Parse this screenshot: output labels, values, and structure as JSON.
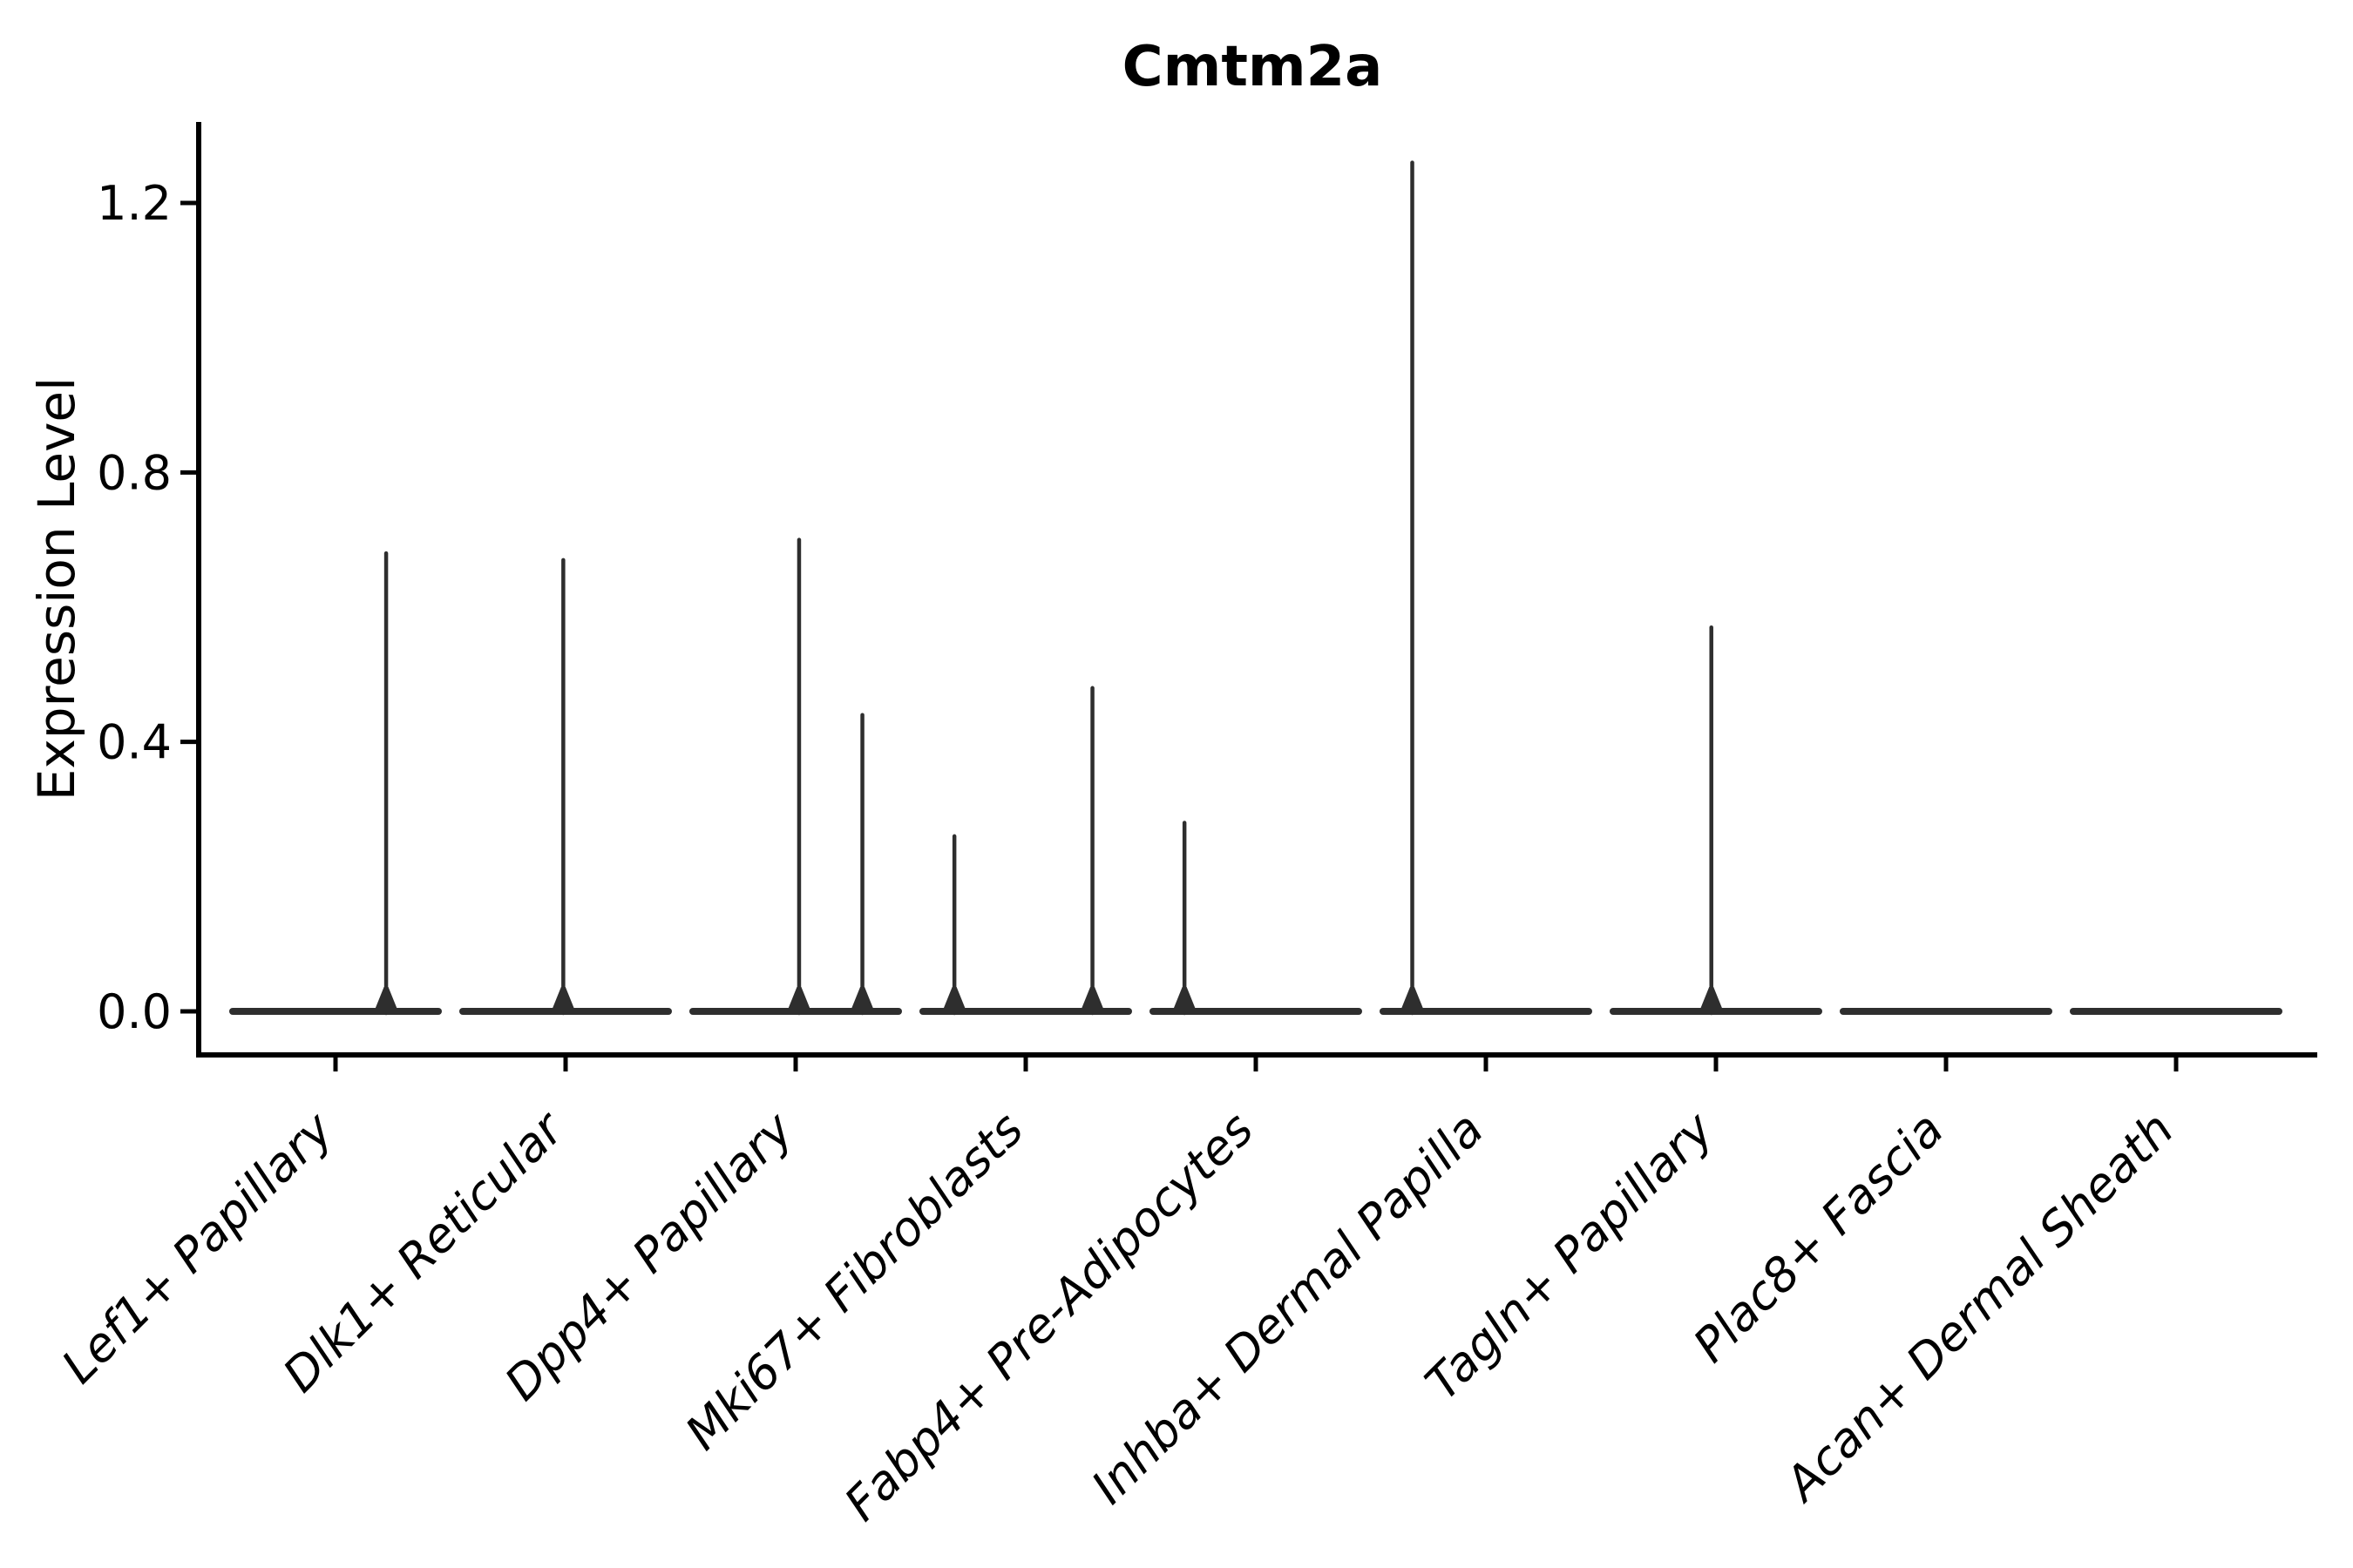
{
  "figure": {
    "background": "#ffffff",
    "axis_color": "#000000",
    "text_color": "#000000",
    "violin_color": "#2e2e2e"
  },
  "chart_data": {
    "type": "violin",
    "title": "Cmtm2a",
    "xlabel": "",
    "ylabel": "Expression Level",
    "ylim": [
      0,
      1.35
    ],
    "yticks": [
      0.0,
      0.4,
      0.8,
      1.2
    ],
    "grid": false,
    "legend": null,
    "categories": [
      "Lef1+ Papillary",
      "Dlk1+ Reticular",
      "Dpp4+ Papillary",
      "Mki67+ Fibroblasts",
      "Fabp4+ Pre-Adipocytes",
      "Inhba+ Dermal Papilla",
      "Tagln+ Papillary",
      "Plac8+ Fascia",
      "Acan+ Dermal Sheath"
    ],
    "violins": [
      {
        "category": "Lef1+ Papillary",
        "bulk_value": 0.0,
        "spikes": [
          {
            "value": 0.68,
            "offset_frac": 0.22
          }
        ]
      },
      {
        "category": "Dlk1+ Reticular",
        "bulk_value": 0.0,
        "spikes": [
          {
            "value": 0.67,
            "offset_frac": -0.01
          }
        ]
      },
      {
        "category": "Dpp4+ Papillary",
        "bulk_value": 0.0,
        "spikes": [
          {
            "value": 0.7,
            "offset_frac": 0.015
          },
          {
            "value": 0.44,
            "offset_frac": 0.29
          }
        ]
      },
      {
        "category": "Mki67+ Fibroblasts",
        "bulk_value": 0.0,
        "spikes": [
          {
            "value": 0.26,
            "offset_frac": -0.31
          },
          {
            "value": 0.48,
            "offset_frac": 0.29
          }
        ]
      },
      {
        "category": "Fabp4+ Pre-Adipocytes",
        "bulk_value": 0.0,
        "spikes": [
          {
            "value": 0.28,
            "offset_frac": -0.31
          }
        ]
      },
      {
        "category": "Inhba+ Dermal Papilla",
        "bulk_value": 0.0,
        "spikes": [
          {
            "value": 1.26,
            "offset_frac": -0.32
          }
        ]
      },
      {
        "category": "Tagln+ Papillary",
        "bulk_value": 0.0,
        "spikes": [
          {
            "value": 0.57,
            "offset_frac": -0.02
          }
        ]
      },
      {
        "category": "Plac8+ Fascia",
        "bulk_value": 0.0,
        "spikes": []
      },
      {
        "category": "Acan+ Dermal Sheath",
        "bulk_value": 0.0,
        "spikes": []
      }
    ]
  }
}
